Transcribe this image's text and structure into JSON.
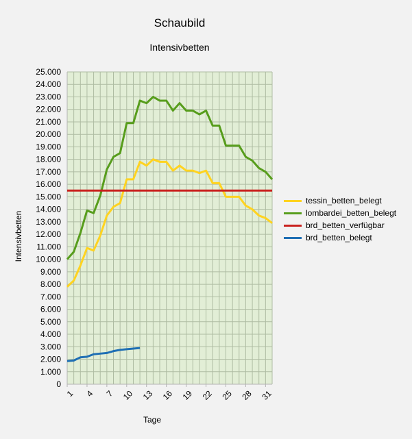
{
  "chart_data": {
    "type": "line",
    "title": "Schaubild",
    "subtitle": "Intensivbetten",
    "xlabel": "Tage",
    "ylabel": "Intensivbetten",
    "x": [
      1,
      2,
      3,
      4,
      5,
      6,
      7,
      8,
      9,
      10,
      11,
      12,
      13,
      14,
      15,
      16,
      17,
      18,
      19,
      20,
      21,
      22,
      23,
      24,
      25,
      26,
      27,
      28,
      29,
      30,
      31,
      32
    ],
    "x_tick_labels": [
      "1",
      "4",
      "7",
      "10",
      "13",
      "16",
      "19",
      "22",
      "25",
      "28",
      "31"
    ],
    "x_tick_values": [
      1,
      4,
      7,
      10,
      13,
      16,
      19,
      22,
      25,
      28,
      31
    ],
    "xlim": [
      1,
      32
    ],
    "ylim": [
      0,
      25000
    ],
    "y_tick_labels": [
      "0",
      "1.000",
      "2.000",
      "3.000",
      "4.000",
      "5.000",
      "6.000",
      "7.000",
      "8.000",
      "9.000",
      "10.000",
      "11.000",
      "12.000",
      "13.000",
      "14.000",
      "15.000",
      "16.000",
      "17.000",
      "18.000",
      "19.000",
      "20.000",
      "21.000",
      "22.000",
      "23.000",
      "24.000",
      "25.000"
    ],
    "y_tick_values": [
      0,
      1000,
      2000,
      3000,
      4000,
      5000,
      6000,
      7000,
      8000,
      9000,
      10000,
      11000,
      12000,
      13000,
      14000,
      15000,
      16000,
      17000,
      18000,
      19000,
      20000,
      21000,
      22000,
      23000,
      24000,
      25000
    ],
    "grid": true,
    "legend_position": "right",
    "plot_background": "#e2eed6",
    "grid_color": "#aebca2",
    "series": [
      {
        "name": "tessin_betten_belegt",
        "color": "#ffd320",
        "values": [
          7800,
          8300,
          9500,
          10900,
          10700,
          11900,
          13500,
          14200,
          14500,
          16400,
          16400,
          17800,
          17500,
          18000,
          17800,
          17800,
          17100,
          17500,
          17100,
          17100,
          16900,
          17100,
          16100,
          16100,
          15000,
          15000,
          15000,
          14300,
          14000,
          13500,
          13300,
          12900
        ]
      },
      {
        "name": "lombardei_betten_belegt",
        "color": "#579d1c",
        "values": [
          10000,
          10600,
          12100,
          13900,
          13700,
          15100,
          17200,
          18200,
          18500,
          20900,
          20900,
          22700,
          22500,
          23000,
          22700,
          22700,
          21900,
          22500,
          21900,
          21900,
          21600,
          21900,
          20700,
          20700,
          19100,
          19100,
          19100,
          18200,
          17900,
          17300,
          17000,
          16400
        ]
      },
      {
        "name": "brd_betten_verfügbar",
        "color": "#c9211e",
        "values": [
          15500,
          15500,
          15500,
          15500,
          15500,
          15500,
          15500,
          15500,
          15500,
          15500,
          15500,
          15500,
          15500,
          15500,
          15500,
          15500,
          15500,
          15500,
          15500,
          15500,
          15500,
          15500,
          15500,
          15500,
          15500,
          15500,
          15500,
          15500,
          15500,
          15500,
          15500,
          15500
        ]
      },
      {
        "name": "brd_betten_belegt",
        "color": "#1f6fb4",
        "values": [
          1850,
          1900,
          2150,
          2200,
          2400,
          2450,
          2500,
          2650,
          2750,
          2800,
          2850,
          2900,
          null,
          null,
          null,
          null,
          null,
          null,
          null,
          null,
          null,
          null,
          null,
          null,
          null,
          null,
          null,
          null,
          null,
          null,
          null,
          null
        ]
      }
    ]
  }
}
